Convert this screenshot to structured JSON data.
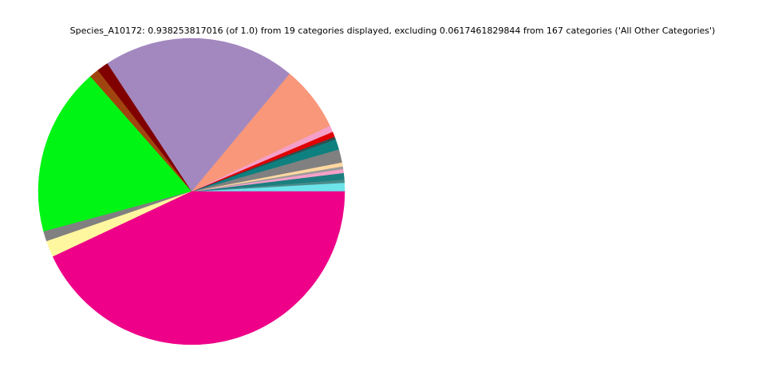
{
  "chart_data": {
    "type": "pie",
    "title": "Species_A10172: 0.938253817016 (of 1.0) from 19 categories displayed, excluding 0.0617461829844 from 167 categories ('All Other Categories')",
    "values": [
      0.0086,
      0.0031,
      0.0065,
      0.0039,
      0.0026,
      0.0039,
      0.013,
      0.0104,
      0.0026,
      0.0052,
      0.0065,
      0.0646,
      0.1905,
      0.0115,
      0.0094,
      0.1662,
      0.0099,
      0.0162,
      0.4033
    ],
    "colors": [
      "#6de3ea",
      "#4a8a8a",
      "#1a7f7f",
      "#f4a0c8",
      "#9a9a9a",
      "#ffd8a0",
      "#808080",
      "#0e8080",
      "#2f4f4f",
      "#e00000",
      "#f4a0c8",
      "#f8977a",
      "#a388bf",
      "#800000",
      "#a0450f",
      "#00f514",
      "#808080",
      "#fff7a0",
      "#ee0088"
    ],
    "start_angle": 0,
    "counterclockwise": true
  }
}
